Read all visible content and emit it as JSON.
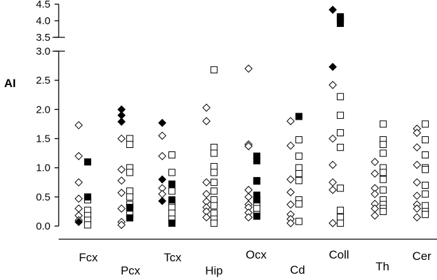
{
  "chart_data": {
    "type": "scatter",
    "ylabel": "AI",
    "categories": [
      "Fcx",
      "Pcx",
      "Tcx",
      "Hip",
      "Ocx",
      "Cd",
      "Coll",
      "Th",
      "Cer"
    ],
    "y_ticks_lower": [
      "0.0",
      "0.5",
      "1.0",
      "1.5",
      "2.0",
      "2.5",
      "3.0"
    ],
    "y_ticks_upper": [
      "3.5",
      "4.0",
      "4.5"
    ],
    "y_break": [
      3.0,
      3.5
    ],
    "ylim": [
      0,
      4.5
    ],
    "grid": false,
    "series": [
      {
        "marker": "open-diamond",
        "values": [
          [
            1.73,
            1.2,
            0.75,
            0.47,
            0.3,
            0.18,
            0.1
          ],
          [
            1.5,
            0.97,
            0.78,
            0.57,
            0.3,
            0.07,
            0.02
          ],
          [
            1.55,
            1.2,
            0.65,
            0.55
          ],
          [
            2.03,
            1.8,
            0.75,
            0.55,
            0.42,
            0.32,
            0.25,
            0.15
          ],
          [
            2.7,
            1.4,
            1.37,
            0.62,
            0.5,
            0.37,
            0.32,
            0.23,
            0.15
          ],
          [
            1.8,
            1.38,
            0.8,
            0.58,
            0.37,
            0.2,
            0.12,
            0.05
          ],
          [
            2.42,
            1.5,
            1.05,
            0.75,
            0.62,
            0.05
          ],
          [
            1.1,
            0.9,
            0.65,
            0.55,
            0.38,
            0.3,
            0.18
          ],
          [
            1.67,
            1.6,
            1.35,
            1.05,
            0.75,
            0.52,
            0.37,
            0.3,
            0.15
          ]
        ]
      },
      {
        "marker": "open-square",
        "values": [
          [
            0.45,
            0.27,
            0.18,
            0.1,
            0.02
          ],
          [
            1.5,
            1.4,
            1.0,
            0.92,
            0.6,
            0.5,
            0.37,
            0.32,
            0.2
          ],
          [
            1.22,
            0.92,
            0.6,
            0.4,
            0.32,
            0.22,
            0.12,
            0.05
          ],
          [
            2.68,
            1.35,
            1.25,
            1.02,
            0.92,
            0.75,
            0.6,
            0.45,
            0.35,
            0.22,
            0.12,
            0.05
          ],
          [
            0.77,
            0.45,
            0.38,
            0.3,
            0.2
          ],
          [
            1.48,
            1.2,
            1.0,
            0.9,
            0.78,
            0.45,
            0.38,
            0.08
          ],
          [
            2.22,
            1.9,
            1.6,
            1.35,
            0.65,
            0.27,
            0.15,
            0.05
          ],
          [
            1.75,
            1.48,
            1.4,
            1.25,
            1.0,
            0.92,
            0.8,
            0.62,
            0.45,
            0.37,
            0.3,
            0.25
          ],
          [
            1.75,
            1.48,
            1.22,
            1.0,
            0.97,
            0.7,
            0.55,
            0.35,
            0.25,
            0.2
          ]
        ]
      },
      {
        "marker": "filled-diamond",
        "values": [
          [
            0.07
          ],
          [
            2.0,
            1.9,
            1.79
          ],
          [
            1.77,
            0.8,
            0.43
          ],
          [],
          [],
          [],
          [
            4.33,
            2.73
          ],
          [],
          []
        ]
      },
      {
        "marker": "filled-square",
        "values": [
          [
            1.1,
            0.5
          ],
          [
            0.32,
            0.14
          ],
          [
            0.72,
            0.45,
            0.05
          ],
          [],
          [
            1.2,
            1.12,
            0.78,
            0.53,
            0.45,
            0.17
          ],
          [
            1.88
          ],
          [
            4.12,
            4.05,
            3.92
          ],
          [],
          []
        ]
      }
    ]
  }
}
